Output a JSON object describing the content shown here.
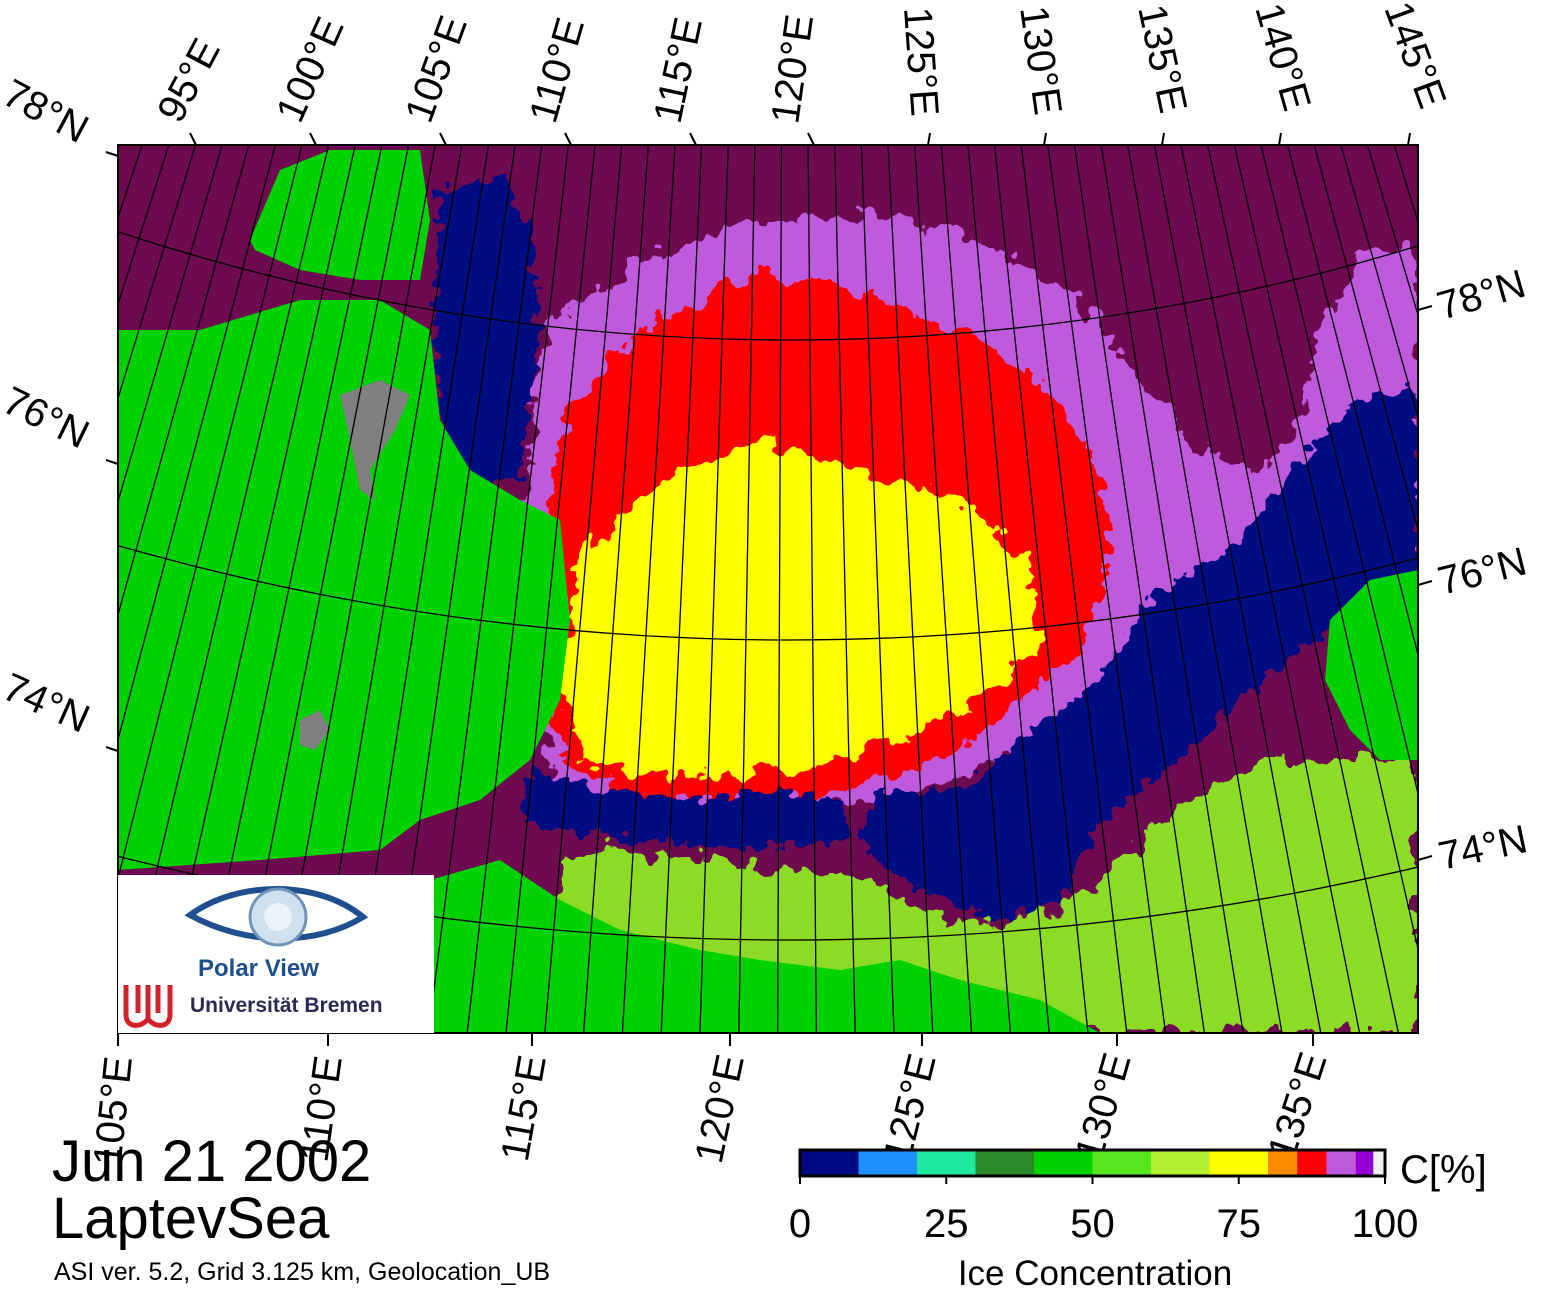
{
  "map": {
    "region": "LaptevSea",
    "date": "Jun 21 2002",
    "info": "ASI ver. 5.2,  Grid 3.125 km, Geolocation_UB",
    "top_lon_labels": [
      "95°E",
      "100°E",
      "105°E",
      "110°E",
      "115°E",
      "120°E",
      "125°E",
      "130°E",
      "135°E",
      "140°E",
      "145°E"
    ],
    "bottom_lon_labels": [
      "105°E",
      "110°E",
      "115°E",
      "120°E",
      "125°E",
      "130°E",
      "135°E"
    ],
    "left_lat_labels": [
      "78°N",
      "76°N",
      "74°N"
    ],
    "right_lat_labels": [
      "78°N",
      "76°N",
      "74°N"
    ]
  },
  "colorbar": {
    "title": "Ice Concentration",
    "unit": "C[%]",
    "ticks": [
      "0",
      "25",
      "50",
      "75",
      "100"
    ],
    "bins": [
      {
        "from": 0,
        "to": 10,
        "color": "#000a82"
      },
      {
        "from": 10,
        "to": 20,
        "color": "#1e90ff"
      },
      {
        "from": 20,
        "to": 30,
        "color": "#1fe8a0"
      },
      {
        "from": 30,
        "to": 40,
        "color": "#2a8c2a"
      },
      {
        "from": 40,
        "to": 50,
        "color": "#00d200"
      },
      {
        "from": 50,
        "to": 60,
        "color": "#5ae61e"
      },
      {
        "from": 60,
        "to": 70,
        "color": "#b4f032"
      },
      {
        "from": 70,
        "to": 80,
        "color": "#ffff00"
      },
      {
        "from": 80,
        "to": 85,
        "color": "#ff8c00"
      },
      {
        "from": 85,
        "to": 90,
        "color": "#ff0000"
      },
      {
        "from": 90,
        "to": 95,
        "color": "#c05adc"
      },
      {
        "from": 95,
        "to": 98,
        "color": "#9400d3"
      },
      {
        "from": 98,
        "to": 100,
        "color": "#f0f0f0"
      }
    ]
  },
  "colors": {
    "land": "#00d200",
    "land_ice": "#808080",
    "open_water": "#000a82",
    "pack_ice": "#6e0a50",
    "high_ice": "#c05adc",
    "medium_ice": "#ff0000",
    "mid_ice": "#ffff00"
  },
  "logo": {
    "name": "Polar View",
    "institution": "Universität Bremen"
  }
}
